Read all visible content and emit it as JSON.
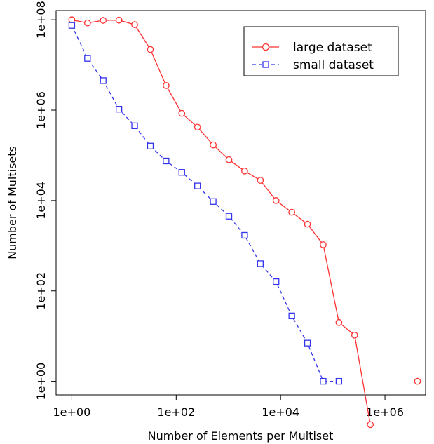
{
  "chart_data": {
    "type": "line",
    "title": "",
    "xlabel": "Number of Elements per Multiset",
    "ylabel": "Number of Multisets",
    "x_scale": "log10",
    "y_scale": "log10",
    "xlim": [
      0.5,
      6000000
    ],
    "ylim": [
      0.5,
      160000000
    ],
    "x_ticks": [
      1,
      100,
      10000,
      1000000
    ],
    "x_tick_labels": [
      "1e+00",
      "1e+02",
      "1e+04",
      "1e+06"
    ],
    "y_ticks": [
      1,
      100,
      10000,
      1000000,
      100000000
    ],
    "y_tick_labels": [
      "1e+00",
      "1e+02",
      "1e+04",
      "1e+06",
      "1e+08"
    ],
    "grid": false,
    "legend_position": "top-right",
    "series": [
      {
        "name": "large dataset",
        "color": "#ff3030",
        "marker": "circle",
        "line_style": "solid",
        "x": [
          1,
          2,
          4,
          8,
          16,
          32,
          64,
          128,
          256,
          512,
          1024,
          2048,
          4096,
          8192,
          16384,
          32768,
          65536,
          131072,
          262144,
          524288
        ],
        "y": [
          100000000,
          85000000,
          97000000,
          98000000,
          78000000,
          22000000,
          3500000,
          850000,
          420000,
          170000,
          80000,
          45000,
          28000,
          10000,
          5500,
          3000,
          1050,
          20,
          10.5,
          0.11
        ],
        "outliers": [
          {
            "x": 4200000,
            "y": 1
          }
        ]
      },
      {
        "name": "small dataset",
        "color": "#3333ee",
        "marker": "square",
        "line_style": "dashed",
        "x": [
          1,
          2,
          4,
          8,
          16,
          32,
          64,
          128,
          256,
          512,
          1024,
          2048,
          4096,
          8192,
          16384,
          32768,
          65536,
          131072
        ],
        "y": [
          75000000,
          14000000,
          4500000,
          1050000,
          450000,
          160000,
          75000,
          42000,
          21000,
          9500,
          4500,
          1700,
          400,
          160,
          28,
          7,
          1,
          1
        ]
      }
    ]
  }
}
